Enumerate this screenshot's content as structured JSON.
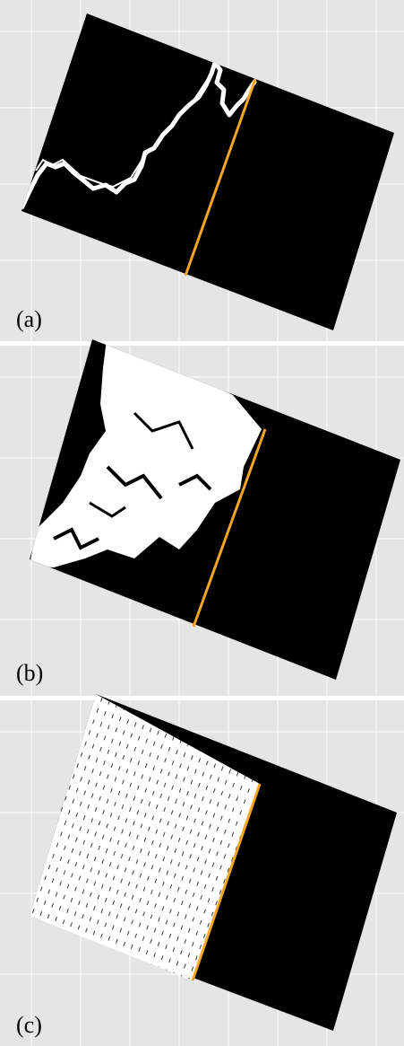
{
  "panels": [
    {
      "label": "(a)"
    },
    {
      "label": "(b)"
    },
    {
      "label": "(c)"
    }
  ]
}
